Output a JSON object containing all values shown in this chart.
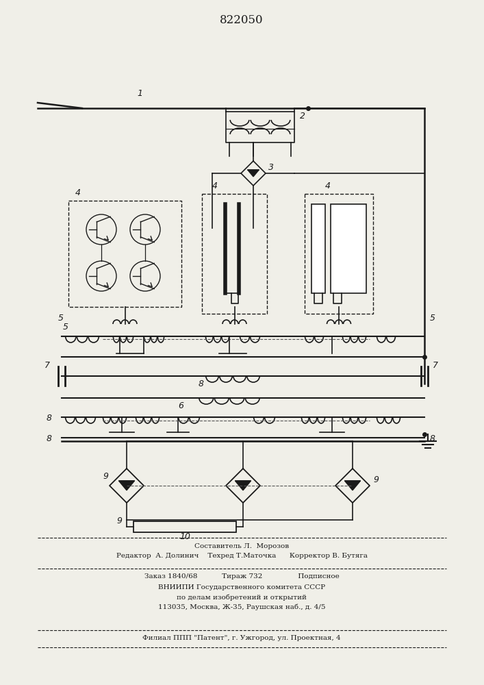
{
  "title": "822050",
  "bg_color": "#f0efe8",
  "line_color": "#1a1a1a",
  "dashed_color": "#555555",
  "footer": {
    "line1": "Составитель Л.  Морозов",
    "line2": "Редактор  А. Долинич    Техред Т.Маточка      Корректор В. Бутяга",
    "line3": "Заказ 1840/68           Тираж 732                Подписное",
    "line4": "ВНИИПИ Государственного комитета СССР",
    "line5": "по делам изобретений и открытий",
    "line6": "113035, Москва, Ж-35, Раушская наб., д. 4/5",
    "line7": "Филиал ППП \"Патент\", г. Ужгород, ул. Проектная, 4"
  }
}
